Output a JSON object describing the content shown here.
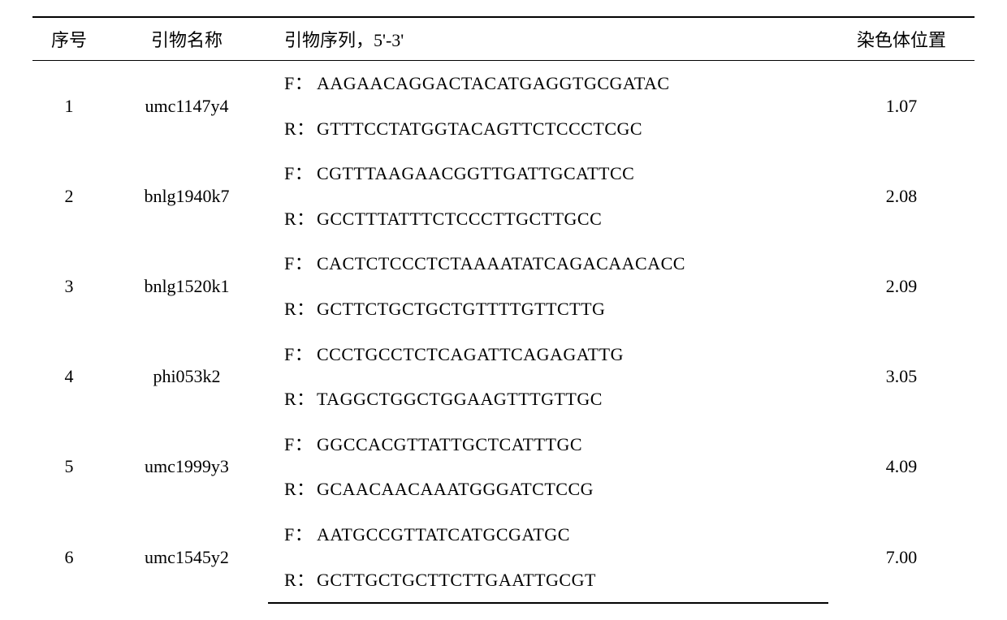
{
  "table": {
    "headers": {
      "num": "序号",
      "name": "引物名称",
      "seq": "引物序列，5'-3'",
      "pos": "染色体位置"
    },
    "rows": [
      {
        "num": "1",
        "name": "umc1147y4",
        "f_prefix": "F：",
        "f_seq": "AAGAACAGGACTACATGAGGTGCGATAC",
        "r_prefix": "R：",
        "r_seq": "GTTTCCTATGGTACAGTTCTCCCTCGC",
        "pos": "1.07"
      },
      {
        "num": "2",
        "name": "bnlg1940k7",
        "f_prefix": "F：",
        "f_seq": "CGTTTAAGAACGGTTGATTGCATTCC",
        "r_prefix": "R：",
        "r_seq": "GCCTTTATTTCTCCCTTGCTTGCC",
        "pos": "2.08"
      },
      {
        "num": "3",
        "name": "bnlg1520k1",
        "f_prefix": "F：",
        "f_seq": "CACTCTCCCTCTAAAATATCAGACAACACC",
        "r_prefix": "R：",
        "r_seq": "GCTTCTGCTGCTGTTTTGTTCTTG",
        "pos": "2.09"
      },
      {
        "num": "4",
        "name": "phi053k2",
        "f_prefix": "F：",
        "f_seq": "CCCTGCCTCTCAGATTCAGAGATTG",
        "r_prefix": "R：",
        "r_seq": "TAGGCTGGCTGGAAGTTTGTTGC",
        "pos": "3.05"
      },
      {
        "num": "5",
        "name": "umc1999y3",
        "f_prefix": "F：",
        "f_seq": "GGCCACGTTATTGCTCATTTGC",
        "r_prefix": "R：",
        "r_seq": "GCAACAACAAATGGGATCTCCG",
        "pos": "4.09"
      },
      {
        "num": "6",
        "name": "umc1545y2",
        "f_prefix": "F：",
        "f_seq": "AATGCCGTTATCATGCGATGC",
        "r_prefix": "R：",
        "r_seq": "GCTTGCTGCTTCTTGAATTGCGT",
        "pos": "7.00"
      }
    ],
    "style": {
      "font_size": 22,
      "text_color": "#000000",
      "background_color": "#ffffff",
      "border_color": "#000000",
      "top_border_width": 2,
      "header_border_width": 1.5,
      "bottom_border_width": 2
    }
  }
}
